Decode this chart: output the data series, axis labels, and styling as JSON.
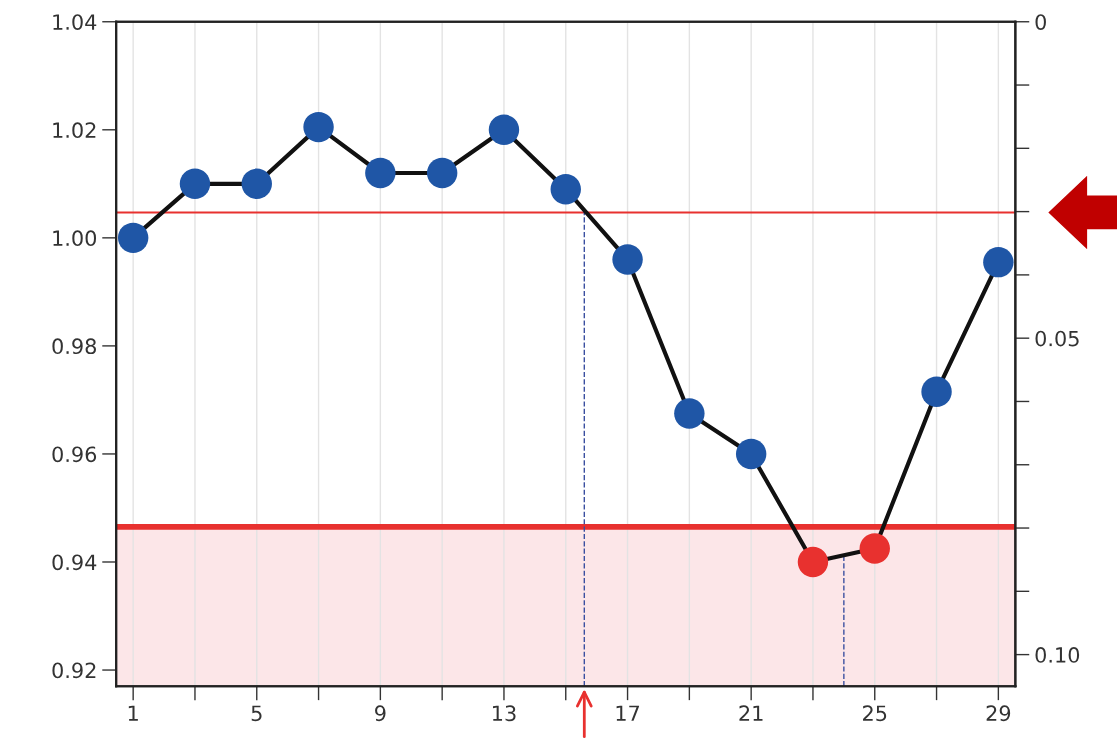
{
  "chart_data": {
    "type": "line",
    "x": [
      1,
      3,
      5,
      7,
      9,
      11,
      13,
      15,
      17,
      19,
      21,
      23,
      25,
      27,
      29
    ],
    "series": [
      {
        "color": "#111111",
        "colors": [
          "#1f56a6",
          "#1f56a6",
          "#1f56a6",
          "#1f56a6",
          "#1f56a6",
          "#1f56a6",
          "#1f56a6",
          "#1f56a6",
          "#1f56a6",
          "#1f56a6",
          "#1f56a6",
          "#e8312f",
          "#e8312f",
          "#1f56a6",
          "#1f56a6"
        ],
        "values": [
          1.0,
          1.01,
          1.01,
          1.0205,
          1.012,
          1.012,
          1.02,
          1.009,
          0.996,
          0.9675,
          0.96,
          0.94,
          0.9425,
          0.9715,
          0.9955
        ]
      }
    ],
    "marker": "circle",
    "line_style": "solid",
    "xlim": [
      0.45,
      29.55
    ],
    "xticks": [
      1,
      {
        "value": 3,
        "label": null
      },
      5,
      {
        "value": 7,
        "label": null
      },
      9,
      {
        "value": 11,
        "label": null
      },
      13,
      {
        "value": 15,
        "label": null
      },
      17,
      {
        "value": 19,
        "label": null
      },
      21,
      {
        "value": 23,
        "label": null
      },
      25,
      {
        "value": 27,
        "label": null
      },
      29
    ],
    "ylim": [
      0.917,
      1.04
    ],
    "yticks": [
      0.92,
      0.94,
      0.96,
      0.98,
      {
        "value": 1.0,
        "label": "1.00"
      },
      1.02,
      1.04
    ],
    "y2lim": [
      0.105,
      0
    ],
    "y2ticks": [
      0,
      {
        "value": 0.01,
        "label": null
      },
      {
        "value": 0.02,
        "label": null
      },
      {
        "value": 0.03,
        "label": null
      },
      {
        "value": 0.04,
        "label": null
      },
      0.05,
      {
        "value": 0.06,
        "label": null
      },
      {
        "value": 0.07,
        "label": null
      },
      {
        "value": 0.08,
        "label": null
      },
      {
        "value": 0.09,
        "label": null
      },
      {
        "value": 0.1,
        "label": "0.10"
      }
    ],
    "grid": "x",
    "ref_lines": [
      {
        "axis": "y",
        "value": 1.0047,
        "color": "#e8312f",
        "line_style": "solid"
      },
      {
        "axis": "y",
        "value": 0.9465,
        "color": "#e8312f",
        "line_style": "solid"
      },
      {
        "axis": "x",
        "value": 15.6,
        "color": "#3a4fa0",
        "line_style": "dashed"
      },
      {
        "axis": "x",
        "value": 24,
        "color": "#3a4fa0",
        "line_style": "dashed"
      }
    ],
    "bands": [
      {
        "axis": "y",
        "from": 0.917,
        "to": 0.9465,
        "color": "#fce6e8"
      }
    ]
  }
}
